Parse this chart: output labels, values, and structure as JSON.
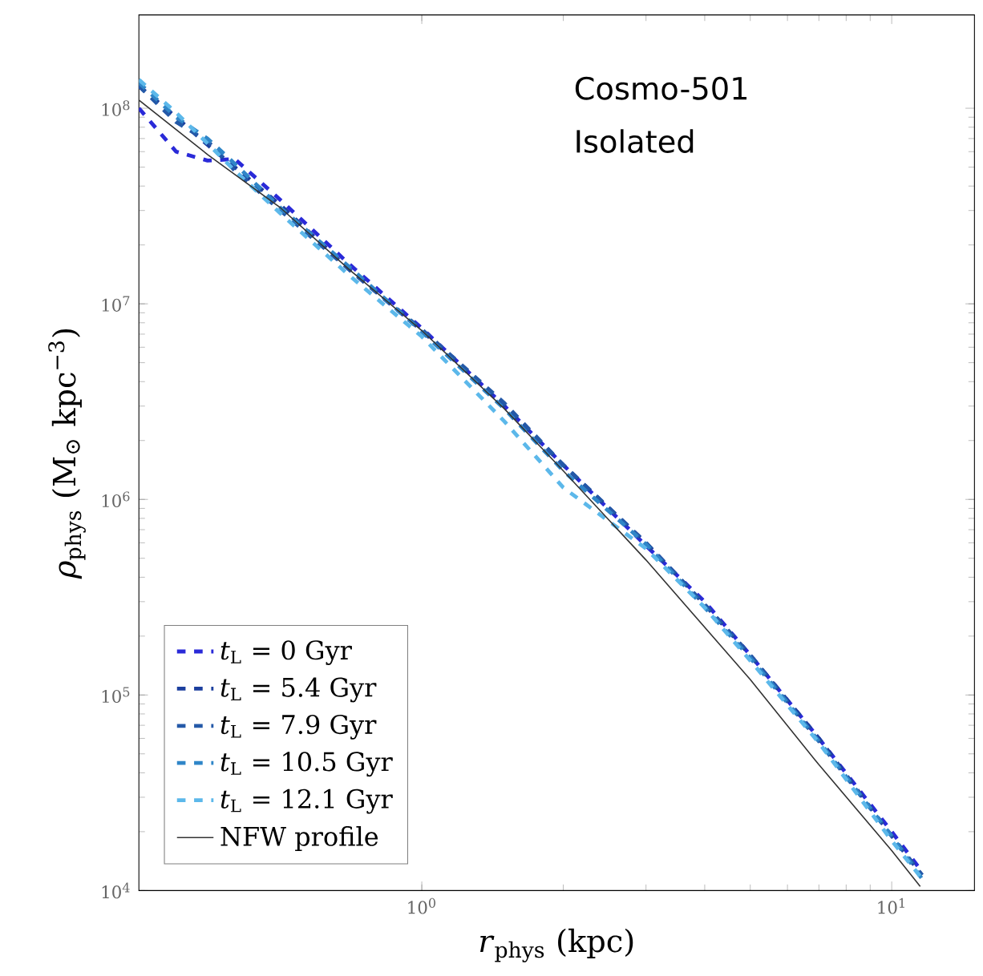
{
  "chart_data": {
    "type": "line",
    "xlabel": "*r*$_{phys}$ (kpc)",
    "ylabel": "*ρ*$_{phys}$ (M$_{⊙}$ kpc$^{−3}$)",
    "annotations": [
      "Cosmo-501",
      "Isolated"
    ],
    "log": "xy",
    "xlim": [
      0.25,
      15
    ],
    "ylim": [
      10000,
      300000000
    ],
    "xticks": [
      {
        "value": 1,
        "label": "10$^{0}$"
      },
      {
        "value": 10,
        "label": "10$^{1}$"
      }
    ],
    "yticks": [
      {
        "value": 10000,
        "label": "10$^{4}$"
      },
      {
        "value": 100000,
        "label": "10$^{5}$"
      },
      {
        "value": 1000000,
        "label": "10$^{6}$"
      },
      {
        "value": 10000000,
        "label": "10$^{7}$"
      },
      {
        "value": 100000000,
        "label": "10$^{8}$"
      }
    ],
    "grid": false,
    "legend": "bottom left",
    "x": [
      0.25,
      0.3,
      0.35,
      0.4,
      0.5,
      0.7,
      1,
      1.5,
      2,
      3,
      4,
      5,
      7,
      10,
      11.6
    ],
    "series": [
      {
        "name": "*t*$_{L}$ = 0 Gyr",
        "color": "#2a2ad8",
        "line_style": "dashed",
        "values": [
          100000000,
          60000000,
          54000000,
          55000000,
          34000000,
          16000000,
          7500000,
          3000000,
          1500000,
          580000,
          300000,
          160000,
          60000,
          20000,
          12500
        ]
      },
      {
        "name": "*t*$_{L}$ = 5.4 Gyr",
        "color": "#1c3f9e",
        "line_style": "dashed",
        "values": [
          130000000,
          90000000,
          65000000,
          50000000,
          32000000,
          15000000,
          7300000,
          3000000,
          1500000,
          600000,
          290000,
          160000,
          60000,
          19000,
          12000
        ]
      },
      {
        "name": "*t*$_{L}$ = 7.9 Gyr",
        "color": "#2459a8",
        "line_style": "dashed",
        "values": [
          130000000,
          85000000,
          68000000,
          48000000,
          30000000,
          15000000,
          7400000,
          3100000,
          1500000,
          600000,
          290000,
          160000,
          58000,
          19000,
          12000
        ]
      },
      {
        "name": "*t*$_{L}$ = 10.5 Gyr",
        "color": "#2f86c8",
        "line_style": "dashed",
        "values": [
          135000000,
          90000000,
          70000000,
          52000000,
          31000000,
          15500000,
          7200000,
          2900000,
          1400000,
          590000,
          280000,
          155000,
          58000,
          19000,
          11500
        ]
      },
      {
        "name": "*t*$_{L}$ = 12.1 Gyr",
        "color": "#5cb8ea",
        "line_style": "dashed",
        "values": [
          140000000,
          95000000,
          66000000,
          48000000,
          29000000,
          14000000,
          6800000,
          2500000,
          1150000,
          560000,
          280000,
          150000,
          57000,
          18000,
          11500
        ]
      },
      {
        "name": "NFW profile",
        "color": "#333333",
        "line_style": "solid",
        "x": [
          0.25,
          0.35,
          0.5,
          0.7,
          1,
          1.5,
          2,
          3,
          5,
          7,
          10,
          11.5
        ],
        "values": [
          110000000,
          58000000,
          31000000,
          15000000,
          7300000,
          2900000,
          1400000,
          490000,
          120000,
          44000,
          16000,
          10500
        ]
      }
    ]
  }
}
